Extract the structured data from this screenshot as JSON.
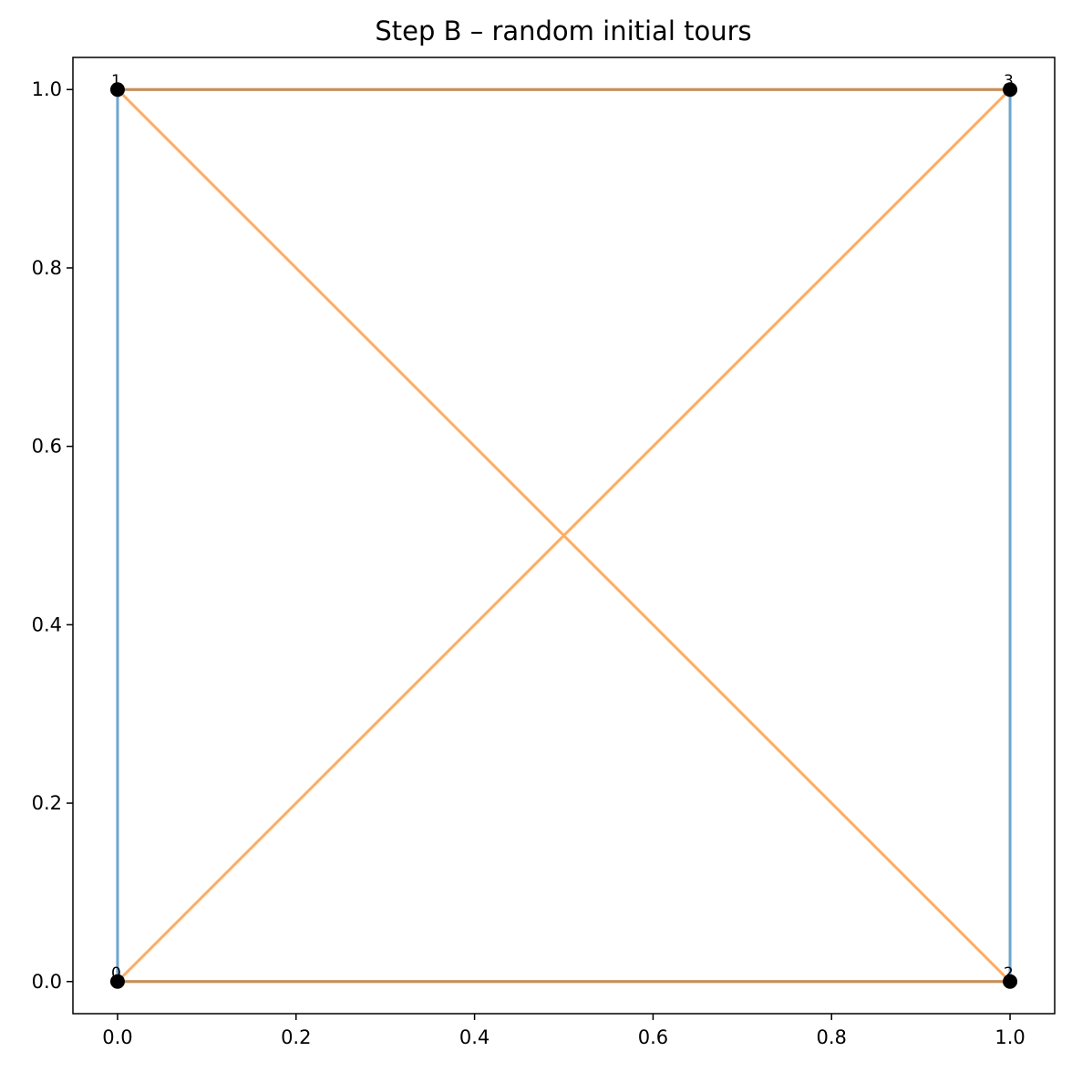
{
  "chart_data": {
    "type": "line",
    "title": "Step B – random initial tours",
    "xlabel": "",
    "ylabel": "",
    "xlim": [
      -0.05,
      1.05
    ],
    "ylim": [
      -0.036,
      1.036
    ],
    "xticks": [
      "0.0",
      "0.2",
      "0.4",
      "0.6",
      "0.8",
      "1.0"
    ],
    "yticks": [
      "0.0",
      "0.2",
      "0.4",
      "0.6",
      "0.8",
      "1.0"
    ],
    "grid": false,
    "nodes": [
      {
        "label": "0",
        "x": 0,
        "y": 0
      },
      {
        "label": "1",
        "x": 0,
        "y": 1
      },
      {
        "label": "2",
        "x": 1,
        "y": 0
      },
      {
        "label": "3",
        "x": 1,
        "y": 1
      }
    ],
    "series": [
      {
        "color": "#1f77b4",
        "tour": [
          0,
          1,
          3,
          2,
          0
        ]
      },
      {
        "color": "#ff7f0e",
        "tour": [
          0,
          2,
          1,
          3,
          0
        ]
      }
    ]
  }
}
